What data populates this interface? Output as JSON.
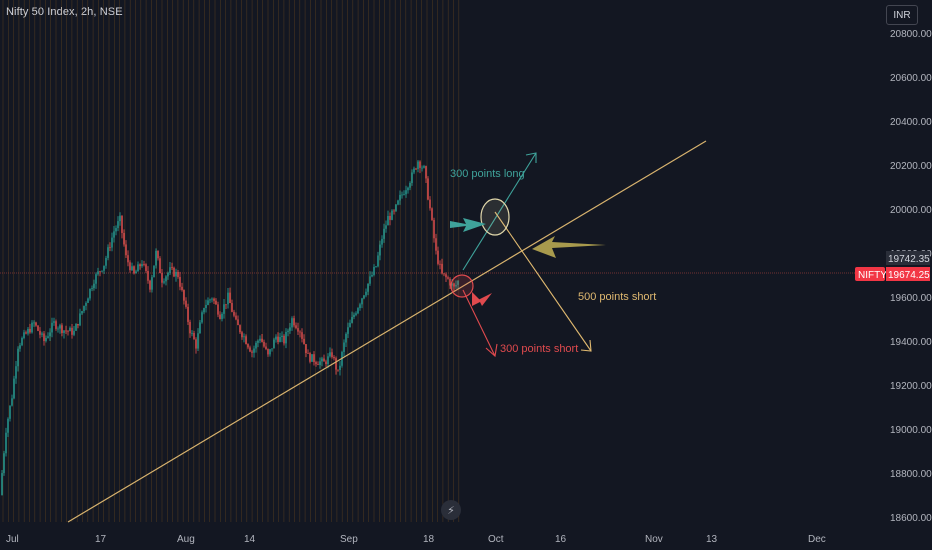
{
  "header": {
    "title": "Nifty 50 Index, 2h, NSE",
    "currency": "INR"
  },
  "footer": {
    "badge_icon": "lightning-icon"
  },
  "colors": {
    "background": "#131722",
    "up": "#26a69a",
    "down": "#ef5350",
    "trendline": "#d8b36e",
    "long_note": "#3fa39b",
    "short_note": "#e0b970",
    "red_note": "#e04a4e",
    "olive_arrow": "#a89a4d"
  },
  "chart_data": {
    "type": "candlestick",
    "symbol": "NIFTY",
    "ylim": [
      18450,
      20950
    ],
    "y_ticks": [
      "18600.00",
      "18800.00",
      "19000.00",
      "19200.00",
      "19400.00",
      "19600.00",
      "19800.00",
      "20000.00",
      "20200.00",
      "20400.00",
      "20600.00",
      "20800.00"
    ],
    "x_ticks": [
      "Jul",
      "17",
      "Aug",
      "14",
      "Sep",
      "18",
      "Oct",
      "16",
      "Nov",
      "13",
      "Dec"
    ],
    "price_path": [
      [
        0,
        18700
      ],
      [
        6,
        19000
      ],
      [
        12,
        19150
      ],
      [
        18,
        19380
      ],
      [
        24,
        19420
      ],
      [
        34,
        19480
      ],
      [
        44,
        19400
      ],
      [
        54,
        19480
      ],
      [
        64,
        19450
      ],
      [
        74,
        19440
      ],
      [
        84,
        19560
      ],
      [
        94,
        19680
      ],
      [
        104,
        19750
      ],
      [
        114,
        19900
      ],
      [
        120,
        19950
      ],
      [
        126,
        19780
      ],
      [
        134,
        19700
      ],
      [
        142,
        19760
      ],
      [
        150,
        19650
      ],
      [
        156,
        19800
      ],
      [
        162,
        19680
      ],
      [
        170,
        19720
      ],
      [
        178,
        19700
      ],
      [
        184,
        19580
      ],
      [
        190,
        19450
      ],
      [
        196,
        19380
      ],
      [
        204,
        19560
      ],
      [
        212,
        19600
      ],
      [
        220,
        19520
      ],
      [
        228,
        19600
      ],
      [
        236,
        19480
      ],
      [
        244,
        19420
      ],
      [
        252,
        19350
      ],
      [
        260,
        19420
      ],
      [
        268,
        19330
      ],
      [
        276,
        19420
      ],
      [
        284,
        19400
      ],
      [
        292,
        19500
      ],
      [
        300,
        19450
      ],
      [
        308,
        19330
      ],
      [
        316,
        19310
      ],
      [
        324,
        19300
      ],
      [
        332,
        19340
      ],
      [
        338,
        19250
      ],
      [
        346,
        19430
      ],
      [
        354,
        19520
      ],
      [
        362,
        19600
      ],
      [
        370,
        19680
      ],
      [
        376,
        19740
      ],
      [
        382,
        19870
      ],
      [
        388,
        19960
      ],
      [
        394,
        19980
      ],
      [
        400,
        20050
      ],
      [
        406,
        20100
      ],
      [
        412,
        20150
      ],
      [
        418,
        20220
      ],
      [
        424,
        20180
      ],
      [
        430,
        20000
      ],
      [
        436,
        19800
      ],
      [
        442,
        19700
      ],
      [
        448,
        19680
      ],
      [
        454,
        19640
      ],
      [
        458,
        19670
      ]
    ],
    "last_price": "19742.35",
    "current_price": "19674.25",
    "annotations": [
      "300 points long",
      "500 points short",
      "300 points short"
    ]
  }
}
